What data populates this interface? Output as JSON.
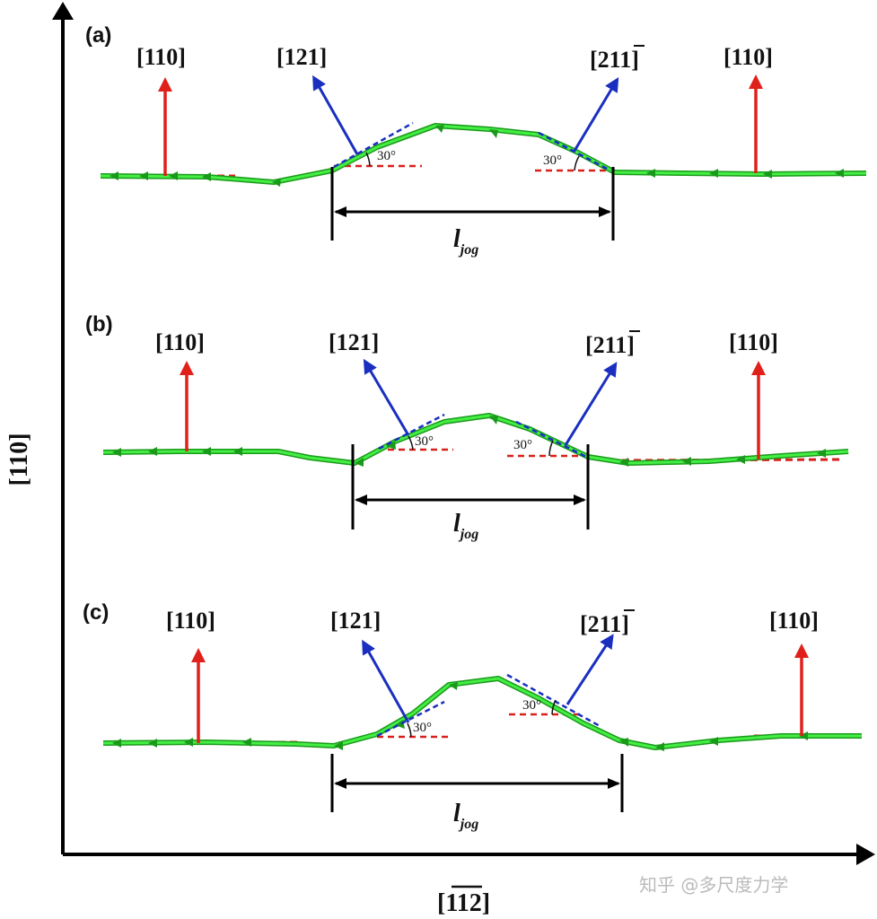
{
  "axes": {
    "y_label": "[110]",
    "x_label": "[1",
    "x_label_bar": "12",
    "x_label_close": "]"
  },
  "panels": [
    {
      "tag": "(a)",
      "dir_left": "[110]",
      "dir_121": "[121]",
      "dir_211_pre": "[21",
      "dir_211_bar": "1",
      "dir_211_post": "]",
      "dir_right": "[110]",
      "angle_left": "30°",
      "angle_right": "30°",
      "jog": "l",
      "jog_sub": "jog"
    },
    {
      "tag": "(b)",
      "dir_left": "[110]",
      "dir_121": "[121]",
      "dir_211_pre": "[21",
      "dir_211_bar": "1",
      "dir_211_post": "]",
      "dir_right": "[110]",
      "angle_left": "30°",
      "angle_right": "30°",
      "jog": "l",
      "jog_sub": "jog"
    },
    {
      "tag": "(c)",
      "dir_left": "[110]",
      "dir_121": "[121]",
      "dir_211_pre": "[21",
      "dir_211_bar": "1",
      "dir_211_post": "]",
      "dir_right": "[110]",
      "angle_left": "30°",
      "angle_right": "30°",
      "jog": "l",
      "jog_sub": "jog"
    }
  ],
  "watermark": "知乎 @多尺度力学",
  "colors": {
    "dislocation": "#33dd33",
    "dislocation_edge": "#1a9a1a",
    "red_arrow": "#e0201a",
    "blue_arrow": "#1a2fc0",
    "red_dash": "#d8201a",
    "blue_dash": "#1a2fc0"
  }
}
